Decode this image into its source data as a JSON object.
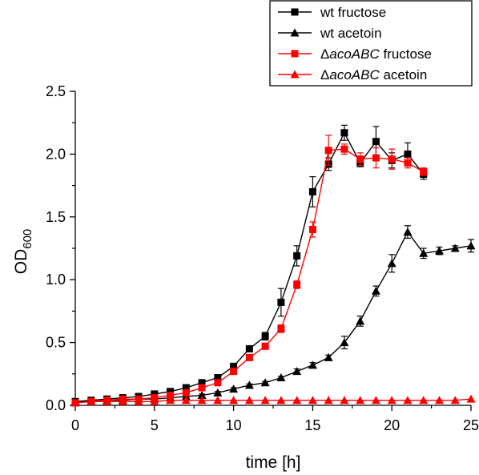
{
  "chart_data": {
    "type": "line",
    "xlabel": "time [h]",
    "ylabel_main": "OD",
    "ylabel_sub": "600",
    "xlim": [
      0,
      25
    ],
    "ylim": [
      0,
      2.5
    ],
    "xticks": [
      0,
      5,
      10,
      15,
      20,
      25
    ],
    "xtick_labels": [
      "0",
      "5",
      "10",
      "15",
      "20",
      "25"
    ],
    "yticks": [
      0,
      0.5,
      1.0,
      1.5,
      2.0,
      2.5
    ],
    "ytick_labels": [
      "0.0",
      "0.5",
      "1.0",
      "1.5",
      "2.0",
      "2.5"
    ],
    "grid": false,
    "legend_position": "top-right",
    "series": [
      {
        "name_prefix": "",
        "name_italic": "",
        "name_suffix": "wt fructose",
        "color": "#000000",
        "marker": "square",
        "x": [
          0,
          1,
          2,
          3,
          4,
          5,
          6,
          7,
          8,
          9,
          10,
          11,
          12,
          13,
          14,
          15,
          16,
          17,
          18,
          19,
          20,
          21,
          22
        ],
        "y": [
          0.03,
          0.04,
          0.05,
          0.06,
          0.07,
          0.09,
          0.11,
          0.14,
          0.18,
          0.22,
          0.31,
          0.45,
          0.55,
          0.82,
          1.19,
          1.7,
          1.92,
          2.17,
          1.93,
          2.1,
          1.95,
          2.0,
          1.84
        ],
        "err": [
          0.01,
          0.01,
          0.01,
          0.01,
          0.01,
          0.01,
          0.01,
          0.01,
          0.02,
          0.02,
          0.02,
          0.02,
          0.03,
          0.11,
          0.08,
          0.12,
          0.05,
          0.06,
          0.03,
          0.12,
          0.06,
          0.09,
          0.04
        ]
      },
      {
        "name_prefix": "",
        "name_italic": "",
        "name_suffix": "wt acetoin",
        "color": "#000000",
        "marker": "triangle",
        "x": [
          0,
          1,
          2,
          3,
          4,
          5,
          6,
          7,
          8,
          9,
          10,
          11,
          12,
          13,
          14,
          15,
          16,
          17,
          18,
          19,
          20,
          21,
          22,
          23,
          24,
          25
        ],
        "y": [
          0.03,
          0.03,
          0.04,
          0.04,
          0.05,
          0.05,
          0.06,
          0.07,
          0.08,
          0.1,
          0.13,
          0.16,
          0.18,
          0.22,
          0.27,
          0.32,
          0.38,
          0.5,
          0.67,
          0.91,
          1.13,
          1.38,
          1.21,
          1.23,
          1.25,
          1.27
        ],
        "err": [
          0.005,
          0.005,
          0.005,
          0.005,
          0.005,
          0.005,
          0.005,
          0.005,
          0.01,
          0.01,
          0.01,
          0.01,
          0.01,
          0.01,
          0.02,
          0.02,
          0.02,
          0.05,
          0.04,
          0.04,
          0.07,
          0.05,
          0.04,
          0.03,
          0.02,
          0.05
        ]
      },
      {
        "name_prefix": "Δ",
        "name_italic": "acoABC",
        "name_suffix": " fructose",
        "color": "#ff0000",
        "marker": "square",
        "x": [
          0,
          1,
          2,
          3,
          4,
          5,
          6,
          7,
          8,
          9,
          10,
          11,
          12,
          13,
          14,
          15,
          16,
          17,
          18,
          19,
          20,
          21,
          22
        ],
        "y": [
          0.02,
          0.03,
          0.04,
          0.05,
          0.05,
          0.06,
          0.08,
          0.1,
          0.14,
          0.18,
          0.27,
          0.38,
          0.47,
          0.61,
          0.96,
          1.4,
          2.03,
          2.04,
          1.96,
          1.97,
          1.96,
          1.93,
          1.86
        ],
        "err": [
          0.005,
          0.005,
          0.005,
          0.005,
          0.005,
          0.005,
          0.005,
          0.01,
          0.01,
          0.01,
          0.02,
          0.02,
          0.02,
          0.03,
          0.03,
          0.06,
          0.12,
          0.04,
          0.05,
          0.08,
          0.08,
          0.04,
          0.03
        ]
      },
      {
        "name_prefix": "Δ",
        "name_italic": "acoABC",
        "name_suffix": " acetoin",
        "color": "#ff0000",
        "marker": "triangle",
        "x": [
          0,
          1,
          2,
          3,
          4,
          5,
          6,
          7,
          8,
          9,
          10,
          11,
          12,
          13,
          14,
          15,
          16,
          17,
          18,
          19,
          20,
          21,
          22,
          23,
          24,
          25
        ],
        "y": [
          0.02,
          0.03,
          0.03,
          0.03,
          0.03,
          0.03,
          0.04,
          0.04,
          0.04,
          0.04,
          0.04,
          0.04,
          0.04,
          0.04,
          0.04,
          0.04,
          0.04,
          0.04,
          0.04,
          0.04,
          0.04,
          0.04,
          0.04,
          0.04,
          0.04,
          0.05
        ],
        "err": [
          0,
          0,
          0,
          0,
          0,
          0,
          0,
          0,
          0,
          0,
          0,
          0,
          0,
          0,
          0,
          0,
          0,
          0,
          0,
          0,
          0,
          0,
          0,
          0,
          0,
          0
        ]
      }
    ]
  }
}
